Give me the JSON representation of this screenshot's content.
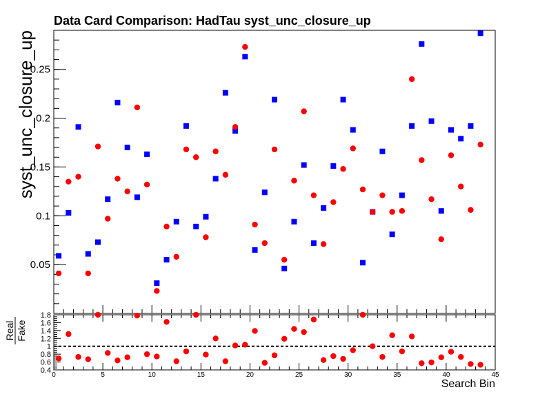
{
  "chart_data": [
    {
      "type": "scatter",
      "title": "Data Card Comparison: HadTau syst_unc_closure_up",
      "ylabel": "syst_unc_closure_up",
      "xlabel": "",
      "xlim": [
        0,
        45
      ],
      "ylim": [
        0,
        0.29
      ],
      "y_ticks": [
        {
          "v": 0.05,
          "label": "0.05"
        },
        {
          "v": 0.1,
          "label": "0.1"
        },
        {
          "v": 0.15,
          "label": "0.15"
        },
        {
          "v": 0.2,
          "label": "0.2"
        },
        {
          "v": 0.25,
          "label": "0.25"
        }
      ],
      "grid": false,
      "series": [
        {
          "color": "#0000ff",
          "marker": "square",
          "x": [
            0.5,
            1.5,
            2.5,
            3.5,
            4.5,
            5.5,
            6.5,
            7.5,
            8.5,
            9.5,
            10.5,
            11.5,
            12.5,
            13.5,
            14.5,
            15.5,
            16.5,
            17.5,
            18.5,
            19.5,
            20.5,
            21.5,
            22.5,
            23.5,
            24.5,
            25.5,
            26.5,
            27.5,
            28.5,
            29.5,
            30.5,
            31.5,
            32.5,
            33.5,
            34.5,
            35.5,
            36.5,
            37.5,
            38.5,
            39.5,
            40.5,
            41.5,
            42.5,
            43.5
          ],
          "values": [
            0.059,
            0.103,
            0.191,
            0.061,
            0.073,
            0.117,
            0.216,
            0.17,
            0.119,
            0.163,
            0.031,
            0.055,
            0.094,
            0.192,
            0.089,
            0.099,
            0.138,
            0.226,
            0.187,
            0.263,
            0.065,
            0.124,
            0.219,
            0.046,
            0.094,
            0.152,
            0.072,
            0.108,
            0.151,
            0.219,
            0.188,
            0.052,
            0.104,
            0.166,
            0.081,
            0.121,
            0.192,
            0.276,
            0.197,
            0.105,
            0.188,
            0.179,
            0.192,
            0.287
          ]
        },
        {
          "color": "#ff0000",
          "marker": "circle",
          "x": [
            0.5,
            1.5,
            2.5,
            3.5,
            4.5,
            5.5,
            6.5,
            7.5,
            8.5,
            9.5,
            10.5,
            11.5,
            12.5,
            13.5,
            14.5,
            15.5,
            16.5,
            17.5,
            18.5,
            19.5,
            20.5,
            21.5,
            22.5,
            23.5,
            24.5,
            25.5,
            26.5,
            27.5,
            28.5,
            29.5,
            30.5,
            31.5,
            32.5,
            33.5,
            34.5,
            35.5,
            36.5,
            37.5,
            38.5,
            39.5,
            40.5,
            41.5,
            42.5,
            43.5
          ],
          "values": [
            0.041,
            0.135,
            0.14,
            0.041,
            0.171,
            0.097,
            0.138,
            0.125,
            0.211,
            0.132,
            0.023,
            0.089,
            0.058,
            0.168,
            0.16,
            0.078,
            0.166,
            0.142,
            0.191,
            0.273,
            0.091,
            0.072,
            0.168,
            0.055,
            0.136,
            0.207,
            0.121,
            0.071,
            0.114,
            0.148,
            0.169,
            0.127,
            0.104,
            0.121,
            0.104,
            0.105,
            0.24,
            0.157,
            0.117,
            0.076,
            0.162,
            0.13,
            0.106,
            0.173
          ]
        }
      ]
    },
    {
      "type": "scatter",
      "ylabel_top": "Real",
      "ylabel_bottom": "Fake",
      "xlabel": "Search Bin",
      "xlim": [
        0,
        45
      ],
      "ylim": [
        0.4,
        1.8
      ],
      "reference_line": 1.0,
      "y_ticks": [
        {
          "v": 0.4,
          "label": "0.4"
        },
        {
          "v": 0.6,
          "label": "0.6"
        },
        {
          "v": 0.8,
          "label": "0.8"
        },
        {
          "v": 1.0,
          "label": "1"
        },
        {
          "v": 1.2,
          "label": "1.2"
        },
        {
          "v": 1.4,
          "label": "1.4"
        },
        {
          "v": 1.6,
          "label": "1.6"
        },
        {
          "v": 1.8,
          "label": "1.8"
        }
      ],
      "x_ticks": [
        {
          "v": 0,
          "label": "0"
        },
        {
          "v": 5,
          "label": "5"
        },
        {
          "v": 10,
          "label": "10"
        },
        {
          "v": 15,
          "label": "15"
        },
        {
          "v": 20,
          "label": "20"
        },
        {
          "v": 25,
          "label": "25"
        },
        {
          "v": 30,
          "label": "30"
        },
        {
          "v": 35,
          "label": "35"
        },
        {
          "v": 40,
          "label": "40"
        },
        {
          "v": 45,
          "label": "45"
        }
      ],
      "series": [
        {
          "color": "#ff0000",
          "marker": "circle",
          "x": [
            0.5,
            1.5,
            2.5,
            3.5,
            4.5,
            5.5,
            6.5,
            7.5,
            8.5,
            9.5,
            10.5,
            11.5,
            12.5,
            13.5,
            14.5,
            15.5,
            16.5,
            17.5,
            18.5,
            19.5,
            20.5,
            21.5,
            22.5,
            23.5,
            24.5,
            25.5,
            26.5,
            27.5,
            28.5,
            29.5,
            30.5,
            31.5,
            32.5,
            33.5,
            34.5,
            35.5,
            36.5,
            37.5,
            38.5,
            39.5,
            40.5,
            41.5,
            42.5,
            43.5
          ],
          "values": [
            0.69,
            1.31,
            0.73,
            0.67,
            1.8,
            0.83,
            0.64,
            0.72,
            1.78,
            0.8,
            0.74,
            1.62,
            0.62,
            0.87,
            1.8,
            0.79,
            1.2,
            0.62,
            1.02,
            1.04,
            1.39,
            0.58,
            0.77,
            1.19,
            1.44,
            1.36,
            1.68,
            0.65,
            0.75,
            0.68,
            0.9,
            1.8,
            1.0,
            0.73,
            1.28,
            0.87,
            1.25,
            0.57,
            0.59,
            0.72,
            0.86,
            0.73,
            0.55,
            0.53
          ]
        }
      ]
    }
  ]
}
